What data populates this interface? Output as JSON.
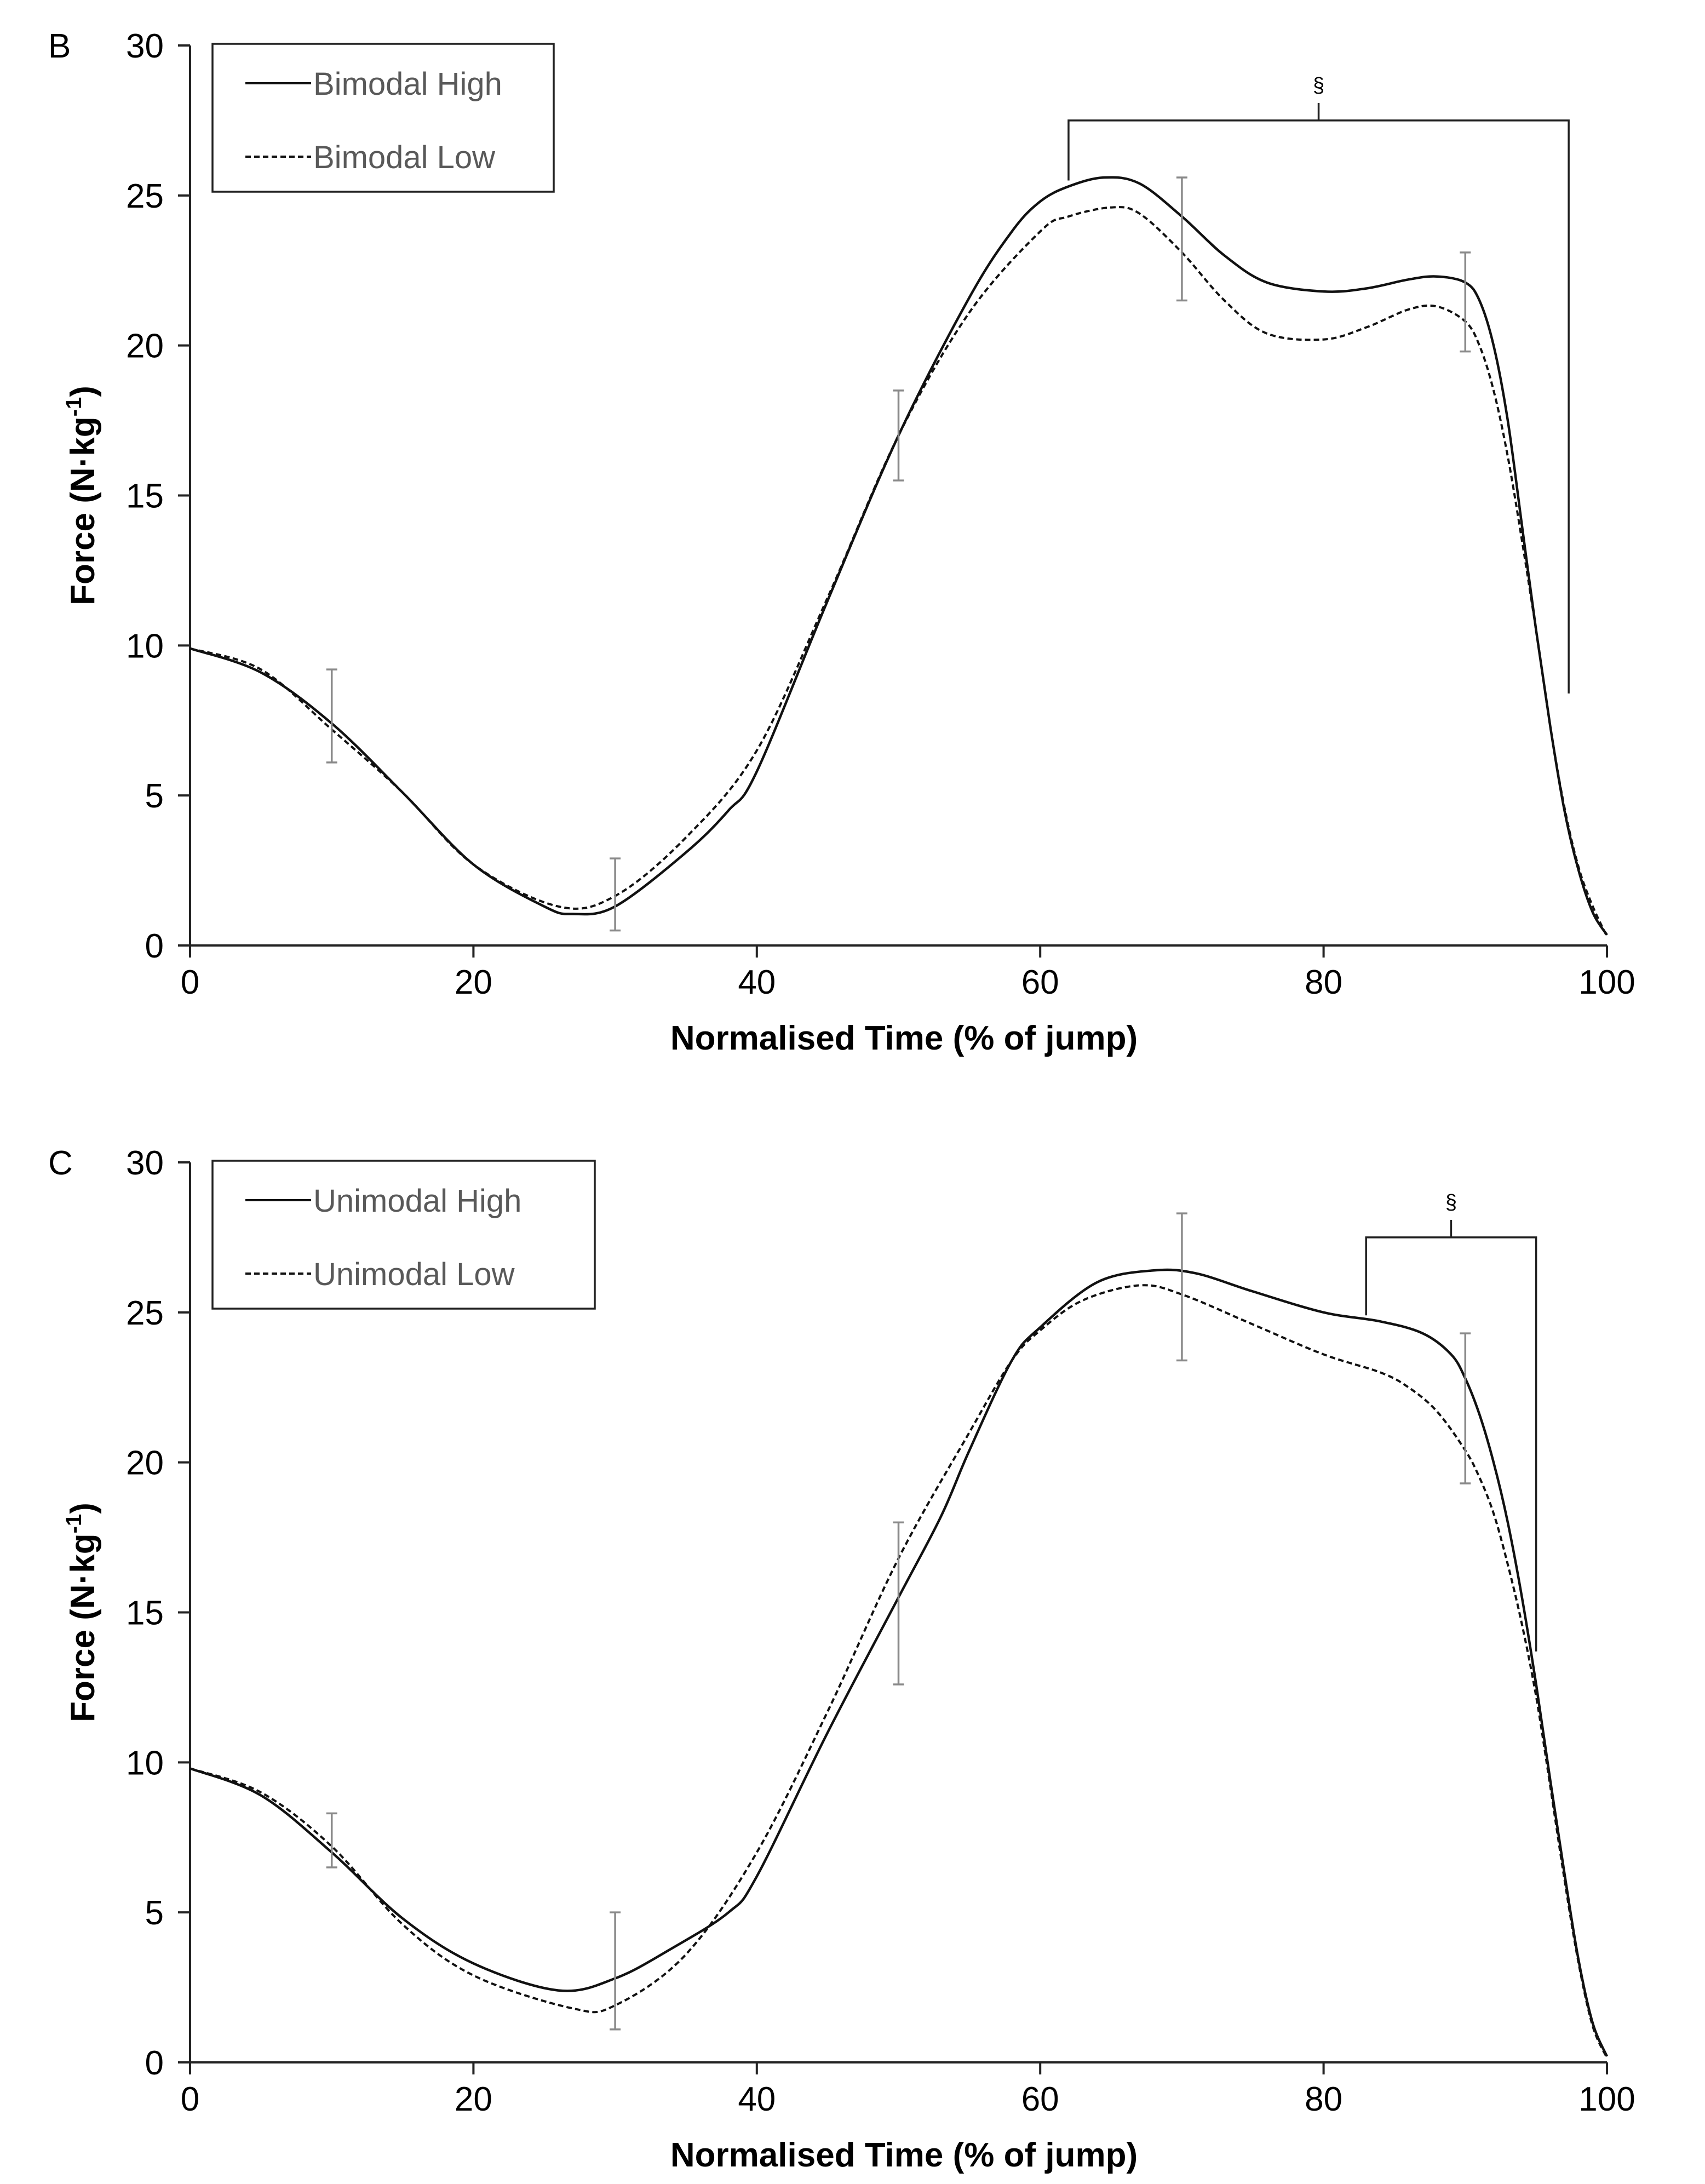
{
  "chart_data": [
    {
      "type": "line",
      "panel_label": "B",
      "xlabel": "Normalised Time (% of jump)",
      "ylabel": "Force (N·kg",
      "ylabel_sup": "-1",
      "ylabel_close": ")",
      "xlim": [
        0,
        100
      ],
      "ylim": [
        0,
        30
      ],
      "x_ticks": [
        0,
        20,
        40,
        60,
        80,
        100
      ],
      "y_ticks": [
        0,
        5,
        10,
        15,
        20,
        25,
        30
      ],
      "legend_position": "top-left",
      "grid": false,
      "series": [
        {
          "name": "Bimodal High",
          "style": "solid",
          "x": [
            0,
            5,
            10,
            15,
            20,
            25,
            27,
            30,
            35,
            38,
            40,
            45,
            50,
            55,
            58,
            60,
            62,
            64.5,
            67,
            70,
            73,
            76,
            80,
            83,
            86,
            88,
            90,
            91,
            92,
            93,
            94,
            95,
            96,
            97,
            98,
            99,
            100
          ],
          "y": [
            9.9,
            9.1,
            7.4,
            5.1,
            2.7,
            1.3,
            1.05,
            1.3,
            3.1,
            4.5,
            5.8,
            11.5,
            17.0,
            21.6,
            23.8,
            24.8,
            25.3,
            25.6,
            25.4,
            24.3,
            23.0,
            22.1,
            21.8,
            21.9,
            22.2,
            22.3,
            22.1,
            21.5,
            20.0,
            17.5,
            14.0,
            10.5,
            7.3,
            4.5,
            2.5,
            1.1,
            0.35
          ]
        },
        {
          "name": "Bimodal Low",
          "style": "dashed",
          "x": [
            0,
            5,
            10,
            15,
            20,
            26,
            30,
            35,
            40,
            45,
            50,
            55,
            60,
            62,
            65,
            67,
            70,
            73,
            76,
            80,
            83,
            86,
            88,
            90,
            91,
            92,
            93,
            94,
            95,
            96,
            97,
            98,
            99,
            100
          ],
          "y": [
            9.9,
            9.2,
            7.2,
            5.1,
            2.7,
            1.3,
            1.65,
            3.6,
            6.5,
            11.6,
            17.0,
            21.1,
            23.8,
            24.3,
            24.6,
            24.4,
            23.1,
            21.5,
            20.4,
            20.2,
            20.6,
            21.2,
            21.3,
            20.8,
            20.0,
            18.5,
            16.3,
            13.5,
            10.5,
            7.3,
            4.6,
            2.6,
            1.3,
            0.3
          ]
        }
      ],
      "error_bars": [
        {
          "x": 10,
          "low": 6.1,
          "high": 9.2
        },
        {
          "x": 30,
          "low": 0.5,
          "high": 2.9
        },
        {
          "x": 50,
          "low": 15.5,
          "high": 18.5
        },
        {
          "x": 70,
          "low": 21.5,
          "high": 25.6
        },
        {
          "x": 90,
          "low": 19.8,
          "high": 23.1
        }
      ],
      "bracket": {
        "label": "§",
        "x_start": 62,
        "x_end": 97.3,
        "y_top": 27.5,
        "y_left_end": 25.5,
        "y_right_end": 8.4
      }
    },
    {
      "type": "line",
      "panel_label": "C",
      "xlabel": "Normalised Time (% of jump)",
      "ylabel": "Force (N·kg",
      "ylabel_sup": "-1",
      "ylabel_close": ")",
      "xlim": [
        0,
        100
      ],
      "ylim": [
        0,
        30
      ],
      "x_ticks": [
        0,
        20,
        40,
        60,
        80,
        100
      ],
      "y_ticks": [
        0,
        5,
        10,
        15,
        20,
        25,
        30
      ],
      "legend_position": "top-left",
      "grid": false,
      "series": [
        {
          "name": "Unimodal High",
          "style": "solid",
          "x": [
            0,
            5,
            10,
            15,
            20,
            26,
            30,
            34,
            38,
            40,
            45,
            50,
            53,
            55,
            58,
            60,
            64,
            68,
            71,
            75,
            80,
            84,
            87,
            89,
            90,
            91,
            92,
            93,
            94,
            95,
            96,
            97,
            98,
            99,
            100
          ],
          "y": [
            9.8,
            8.9,
            7.0,
            4.8,
            3.3,
            2.4,
            2.8,
            3.8,
            5.0,
            6.2,
            11.0,
            15.5,
            18.2,
            20.4,
            23.4,
            24.5,
            26.0,
            26.4,
            26.3,
            25.7,
            25.0,
            24.7,
            24.3,
            23.6,
            22.8,
            21.6,
            20.0,
            18.0,
            15.5,
            12.6,
            9.4,
            6.3,
            3.4,
            1.3,
            0.2
          ]
        },
        {
          "name": "Unimodal Low",
          "style": "dashed",
          "x": [
            0,
            5,
            10,
            15,
            20,
            27,
            30,
            35,
            40,
            45,
            50,
            55,
            58,
            60,
            63,
            67,
            70,
            75,
            80,
            84,
            86,
            88,
            90,
            91,
            92,
            93,
            94,
            95,
            96,
            97,
            98,
            99,
            100
          ],
          "y": [
            9.8,
            9.0,
            7.2,
            4.6,
            2.9,
            1.8,
            1.9,
            3.6,
            7.0,
            11.7,
            16.8,
            21.0,
            23.4,
            24.4,
            25.4,
            25.9,
            25.6,
            24.6,
            23.6,
            23.0,
            22.5,
            21.7,
            20.4,
            19.5,
            18.3,
            16.6,
            14.6,
            12.2,
            9.2,
            6.1,
            3.3,
            1.2,
            0.15
          ]
        }
      ],
      "error_bars": [
        {
          "x": 10,
          "low": 6.5,
          "high": 8.3
        },
        {
          "x": 30,
          "low": 1.1,
          "high": 5.0
        },
        {
          "x": 50,
          "low": 12.6,
          "high": 18.0
        },
        {
          "x": 70,
          "low": 23.4,
          "high": 28.3
        },
        {
          "x": 90,
          "low": 19.3,
          "high": 24.3
        }
      ],
      "bracket": {
        "label": "§",
        "x_start": 83,
        "x_end": 95,
        "y_top": 27.5,
        "y_left_end": 24.9,
        "y_right_end": 13.7
      }
    }
  ]
}
